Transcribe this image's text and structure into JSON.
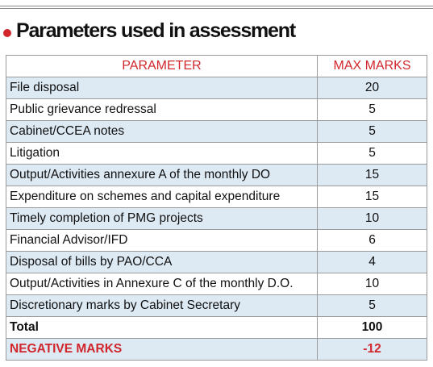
{
  "heading": "Parameters used in assessment",
  "colors": {
    "accent": "#d0262c",
    "row_shade": "#dde9f3"
  },
  "table": {
    "headers": {
      "parameter": "PARAMETER",
      "max_marks": "MAX MARKS"
    },
    "rows": [
      {
        "parameter": "File disposal",
        "max_marks": "20"
      },
      {
        "parameter": "Public grievance redressal",
        "max_marks": "5"
      },
      {
        "parameter": "Cabinet/CCEA notes",
        "max_marks": "5"
      },
      {
        "parameter": "Litigation",
        "max_marks": "5"
      },
      {
        "parameter": "Output/Activities annexure A of the monthly DO",
        "max_marks": "15"
      },
      {
        "parameter": "Expenditure on schemes and capital expenditure",
        "max_marks": "15"
      },
      {
        "parameter": "Timely completion of PMG projects",
        "max_marks": "10"
      },
      {
        "parameter": "Financial Advisor/IFD",
        "max_marks": "6"
      },
      {
        "parameter": "Disposal of bills by PAO/CCA",
        "max_marks": "4"
      },
      {
        "parameter": "Output/Activities in Annexure C of the monthly D.O.",
        "max_marks": "10"
      },
      {
        "parameter": "Discretionary marks by Cabinet Secretary",
        "max_marks": "5"
      }
    ],
    "total": {
      "label": "Total",
      "value": "100"
    },
    "negative": {
      "label": "NEGATIVE MARKS",
      "value": "-12"
    }
  }
}
